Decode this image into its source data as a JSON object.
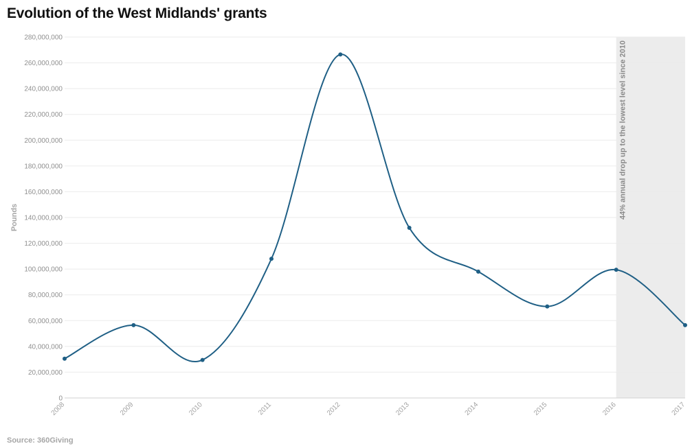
{
  "title": "Evolution of the West Midlands' grants",
  "source": "Source: 360Giving",
  "chart_data": {
    "type": "line",
    "title": "Evolution of the West Midlands' grants",
    "xlabel": "",
    "ylabel": "Pounds",
    "x": [
      "2008",
      "2009",
      "2010",
      "2011",
      "2012",
      "2013",
      "2014",
      "2015",
      "2016",
      "2017"
    ],
    "series": [
      {
        "values": [
          30500000,
          56500000,
          29500000,
          108000000,
          266500000,
          132000000,
          98000000,
          71000000,
          99500000,
          56500000
        ]
      }
    ],
    "ylim": [
      0,
      280000000
    ],
    "yticks": [
      0,
      20000000,
      40000000,
      60000000,
      80000000,
      100000000,
      120000000,
      140000000,
      160000000,
      180000000,
      200000000,
      220000000,
      240000000,
      260000000,
      280000000
    ],
    "grid": true,
    "legend": "none",
    "highlight": {
      "from": "2016",
      "to": "2017",
      "label": "44% annual drop up to the lowest level since 2010"
    },
    "colors": {
      "line": "#1f5f85",
      "grid": "#ebebeb",
      "highlight": "#ececec"
    }
  }
}
